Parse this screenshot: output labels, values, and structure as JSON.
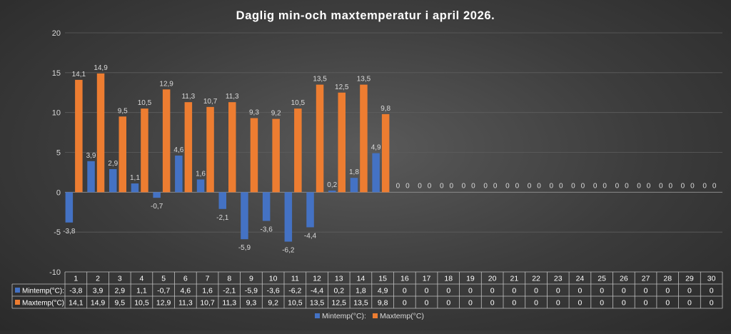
{
  "chart_data": {
    "type": "bar",
    "title": "Daglig min-och maxtemperatur i april 2026.",
    "categories": [
      "1",
      "2",
      "3",
      "4",
      "5",
      "6",
      "7",
      "8",
      "9",
      "10",
      "11",
      "12",
      "13",
      "14",
      "15",
      "16",
      "17",
      "18",
      "19",
      "20",
      "21",
      "22",
      "23",
      "24",
      "25",
      "26",
      "27",
      "28",
      "29",
      "30"
    ],
    "series": [
      {
        "name": "Mintemp(°C):",
        "color": "#4472C4",
        "values": [
          -3.8,
          3.9,
          2.9,
          1.1,
          -0.7,
          4.6,
          1.6,
          -2.1,
          -5.9,
          -3.6,
          -6.2,
          -4.4,
          0.2,
          1.8,
          4.9,
          0,
          0,
          0,
          0,
          0,
          0,
          0,
          0,
          0,
          0,
          0,
          0,
          0,
          0,
          0
        ]
      },
      {
        "name": "Maxtemp(°C)",
        "color": "#ED7D31",
        "values": [
          14.1,
          14.9,
          9.5,
          10.5,
          12.9,
          11.3,
          10.7,
          11.3,
          9.3,
          9.2,
          10.5,
          13.5,
          12.5,
          13.5,
          9.8,
          0,
          0,
          0,
          0,
          0,
          0,
          0,
          0,
          0,
          0,
          0,
          0,
          0,
          0,
          0
        ]
      }
    ],
    "ylim": [
      -10,
      20
    ],
    "yticks": [
      -10,
      -5,
      0,
      5,
      10,
      15,
      20
    ],
    "xlabel": "",
    "ylabel": "",
    "grid": true,
    "data_table": true,
    "legend_position": "bottom",
    "decimal_separator": ","
  }
}
